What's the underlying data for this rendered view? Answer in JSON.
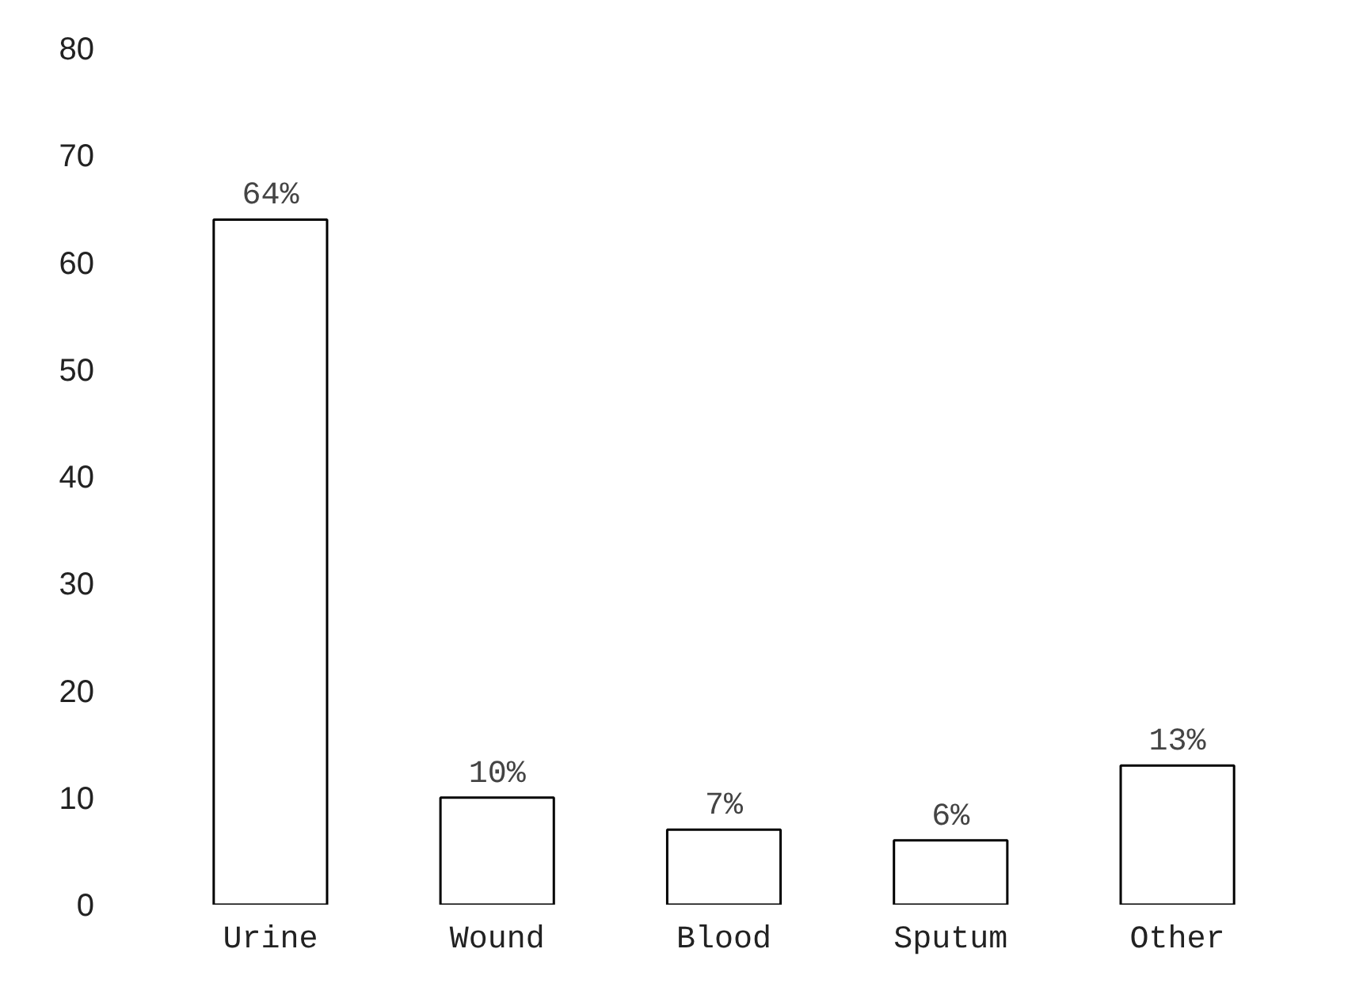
{
  "chart_data": {
    "type": "bar",
    "categories": [
      "Urine",
      "Wound",
      "Blood",
      "Sputum",
      "Other"
    ],
    "values": [
      64,
      10,
      7,
      6,
      13
    ],
    "color": "#000000",
    "value_labels": [
      "64%",
      "10%",
      "7%",
      "6%",
      "13%"
    ],
    "ylim": [
      0,
      80
    ],
    "yticks": [
      0,
      10,
      20,
      30,
      40,
      50,
      60,
      70,
      80
    ],
    "grid": false
  }
}
